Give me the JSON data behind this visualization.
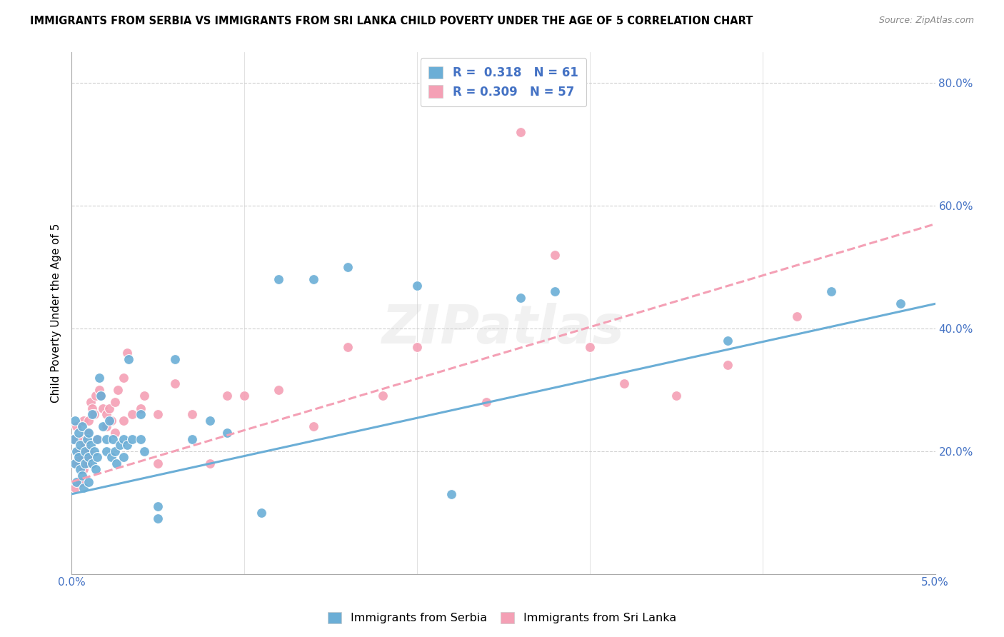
{
  "title": "IMMIGRANTS FROM SERBIA VS IMMIGRANTS FROM SRI LANKA CHILD POVERTY UNDER THE AGE OF 5 CORRELATION CHART",
  "source": "Source: ZipAtlas.com",
  "ylabel": "Child Poverty Under the Age of 5",
  "xlim": [
    0.0,
    0.05
  ],
  "ylim": [
    0.0,
    0.85
  ],
  "xticks": [
    0.0,
    0.01,
    0.02,
    0.03,
    0.04,
    0.05
  ],
  "xticklabels": [
    "0.0%",
    "",
    "",
    "",
    "",
    "5.0%"
  ],
  "yticks": [
    0.0,
    0.2,
    0.4,
    0.6,
    0.8
  ],
  "yticklabels": [
    "",
    "20.0%",
    "40.0%",
    "60.0%",
    "80.0%"
  ],
  "serbia_color": "#6baed6",
  "sri_lanka_color": "#f4a0b5",
  "serbia_R": 0.318,
  "serbia_N": 61,
  "sri_lanka_R": 0.309,
  "sri_lanka_N": 57,
  "background_color": "#ffffff",
  "grid_color": "#cccccc",
  "watermark": "ZIPatlas",
  "serbia_x": [
    0.0001,
    0.0002,
    0.0002,
    0.0003,
    0.0003,
    0.0004,
    0.0004,
    0.0005,
    0.0005,
    0.0006,
    0.0006,
    0.0007,
    0.0008,
    0.0008,
    0.0009,
    0.001,
    0.001,
    0.001,
    0.0011,
    0.0012,
    0.0012,
    0.0013,
    0.0014,
    0.0015,
    0.0015,
    0.0016,
    0.0017,
    0.0018,
    0.002,
    0.002,
    0.0022,
    0.0023,
    0.0024,
    0.0025,
    0.0026,
    0.0028,
    0.003,
    0.003,
    0.0032,
    0.0033,
    0.0035,
    0.004,
    0.004,
    0.0042,
    0.005,
    0.005,
    0.006,
    0.007,
    0.008,
    0.009,
    0.011,
    0.012,
    0.014,
    0.016,
    0.02,
    0.022,
    0.026,
    0.028,
    0.038,
    0.044,
    0.048
  ],
  "serbia_y": [
    0.22,
    0.18,
    0.25,
    0.15,
    0.2,
    0.23,
    0.19,
    0.17,
    0.21,
    0.16,
    0.24,
    0.14,
    0.2,
    0.18,
    0.22,
    0.19,
    0.23,
    0.15,
    0.21,
    0.18,
    0.26,
    0.2,
    0.17,
    0.22,
    0.19,
    0.32,
    0.29,
    0.24,
    0.22,
    0.2,
    0.25,
    0.19,
    0.22,
    0.2,
    0.18,
    0.21,
    0.22,
    0.19,
    0.21,
    0.35,
    0.22,
    0.26,
    0.22,
    0.2,
    0.09,
    0.11,
    0.35,
    0.22,
    0.25,
    0.23,
    0.1,
    0.48,
    0.48,
    0.5,
    0.47,
    0.13,
    0.45,
    0.46,
    0.38,
    0.46,
    0.44
  ],
  "sri_lanka_x": [
    0.0001,
    0.0002,
    0.0003,
    0.0003,
    0.0004,
    0.0005,
    0.0005,
    0.0006,
    0.0007,
    0.0007,
    0.0008,
    0.0009,
    0.0009,
    0.001,
    0.001,
    0.001,
    0.0011,
    0.0012,
    0.0013,
    0.0014,
    0.0015,
    0.0016,
    0.0017,
    0.0018,
    0.002,
    0.002,
    0.0022,
    0.0023,
    0.0025,
    0.0025,
    0.0027,
    0.003,
    0.003,
    0.0032,
    0.0035,
    0.004,
    0.0042,
    0.005,
    0.005,
    0.006,
    0.007,
    0.008,
    0.009,
    0.01,
    0.012,
    0.014,
    0.016,
    0.018,
    0.02,
    0.024,
    0.026,
    0.028,
    0.03,
    0.032,
    0.035,
    0.038,
    0.042
  ],
  "sri_lanka_y": [
    0.22,
    0.14,
    0.18,
    0.24,
    0.2,
    0.15,
    0.19,
    0.22,
    0.17,
    0.25,
    0.21,
    0.18,
    0.23,
    0.2,
    0.25,
    0.19,
    0.28,
    0.27,
    0.26,
    0.29,
    0.22,
    0.3,
    0.29,
    0.27,
    0.26,
    0.24,
    0.27,
    0.25,
    0.28,
    0.23,
    0.3,
    0.25,
    0.32,
    0.36,
    0.26,
    0.27,
    0.29,
    0.26,
    0.18,
    0.31,
    0.26,
    0.18,
    0.29,
    0.29,
    0.3,
    0.24,
    0.37,
    0.29,
    0.37,
    0.28,
    0.72,
    0.52,
    0.37,
    0.31,
    0.29,
    0.34,
    0.42
  ],
  "serbia_line_x": [
    0.0,
    0.05
  ],
  "serbia_line_y": [
    0.13,
    0.44
  ],
  "sri_lanka_line_x": [
    0.0,
    0.05
  ],
  "sri_lanka_line_y": [
    0.15,
    0.57
  ]
}
